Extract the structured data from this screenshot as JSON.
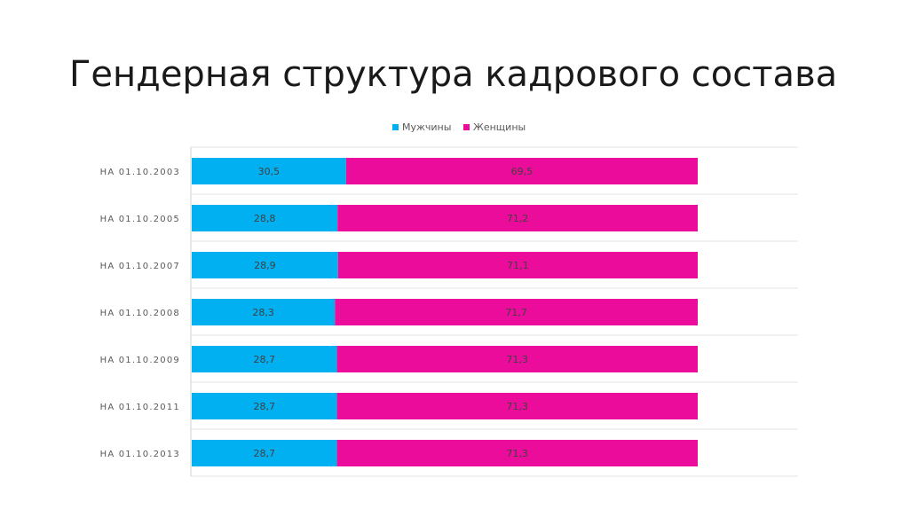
{
  "page": {
    "title": "Гендерная структура кадрового состава"
  },
  "chart_data": {
    "type": "bar",
    "orientation": "horizontal",
    "stacked": true,
    "title": "",
    "xlabel": "",
    "ylabel": "",
    "xlim": [
      0,
      100
    ],
    "grid": true,
    "legend_position": "top",
    "categories": [
      "НА 01.10.2003",
      "НА 01.10.2005",
      "НА 01.10.2007",
      "НА 01.10.2008",
      "НА 01.10.2009",
      "НА 01.10.2011",
      "НА 01.10.2013"
    ],
    "series": [
      {
        "name": "Мужчины",
        "color": "#00b0f0",
        "values": [
          30.5,
          28.8,
          28.9,
          28.3,
          28.7,
          28.7,
          28.7
        ],
        "labels": [
          "30,5",
          "28,8",
          "28,9",
          "28,3",
          "28,7",
          "28,7",
          "28,7"
        ]
      },
      {
        "name": "Женщины",
        "color": "#ec0c9b",
        "values": [
          69.5,
          71.2,
          71.1,
          71.7,
          71.3,
          71.3,
          71.3
        ],
        "labels": [
          "69,5",
          "71,2",
          "71,1",
          "71,7",
          "71,3",
          "71,3",
          "71,3"
        ]
      }
    ]
  }
}
